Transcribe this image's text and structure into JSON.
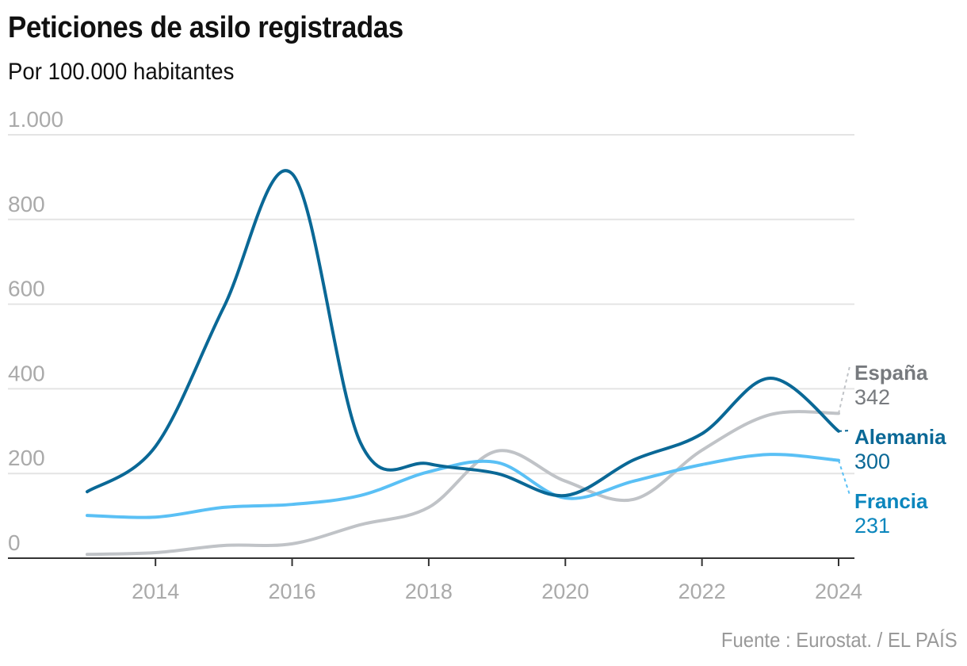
{
  "chart_data": {
    "type": "line",
    "title": "Peticiones de asilo registradas",
    "subtitle": "Por 100.000 habitantes",
    "source": "Fuente : Eurostat. / EL PAÍS",
    "xlabel": "",
    "ylabel": "",
    "x": [
      2013,
      2014,
      2015,
      2016,
      2017,
      2018,
      2019,
      2020,
      2021,
      2022,
      2023,
      2024
    ],
    "xlim": [
      2013,
      2024
    ],
    "ylim": [
      0,
      1000
    ],
    "x_ticks": [
      "2014",
      "2016",
      "2018",
      "2020",
      "2022",
      "2024"
    ],
    "y_ticks": [
      {
        "value": 0,
        "label": "0"
      },
      {
        "value": 200,
        "label": "200"
      },
      {
        "value": 400,
        "label": "400"
      },
      {
        "value": 600,
        "label": "600"
      },
      {
        "value": 800,
        "label": "800"
      },
      {
        "value": 1000,
        "label": "1.000"
      }
    ],
    "grid": true,
    "legend": "end-of-line labels (right)",
    "series": [
      {
        "name": "España",
        "color": "#c0c3c7",
        "label_color": "#777a7e",
        "values": [
          9,
          13,
          30,
          34,
          79,
          120,
          253,
          182,
          139,
          255,
          339,
          342
        ],
        "end_label": "342"
      },
      {
        "name": "Alemania",
        "color": "#0a6896",
        "label_color": "#0a6896",
        "values": [
          157,
          264,
          593,
          908,
          273,
          223,
          200,
          148,
          232,
          294,
          425,
          300
        ],
        "end_label": "300"
      },
      {
        "name": "Francia",
        "color": "#5ac0f5",
        "label_color": "#0b86bd",
        "values": [
          101,
          97,
          120,
          127,
          148,
          204,
          226,
          142,
          182,
          221,
          245,
          231
        ],
        "end_label": "231"
      }
    ]
  }
}
